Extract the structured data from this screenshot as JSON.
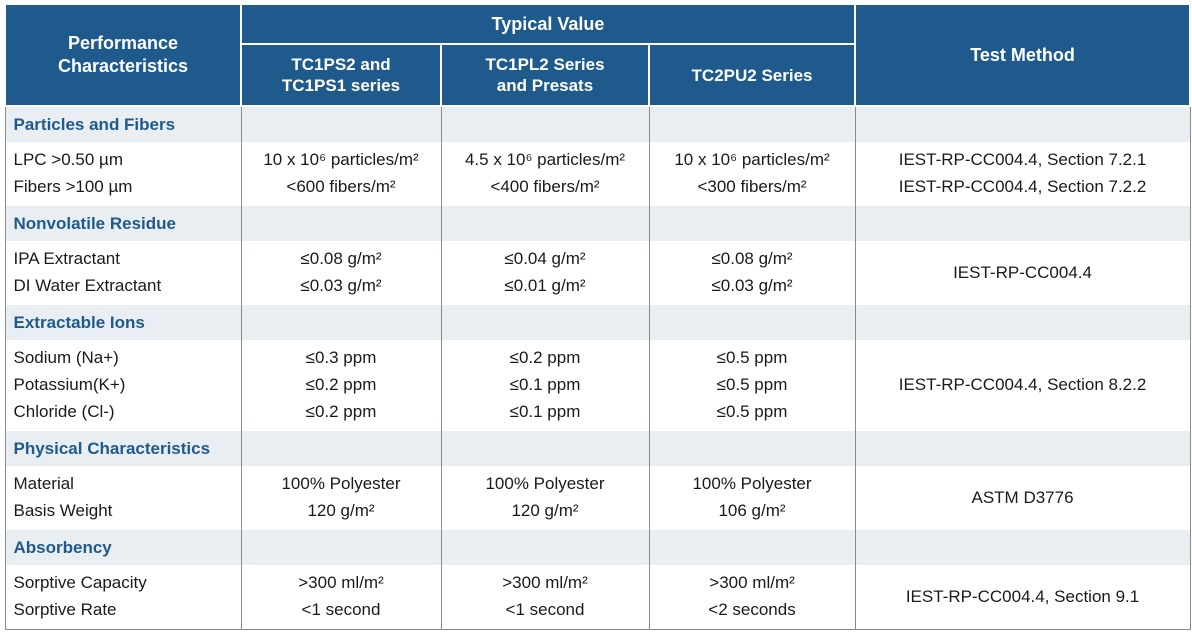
{
  "header": {
    "performance": "Performance Characteristics",
    "typical": "Typical Value",
    "test_method": "Test Method",
    "col1": "TC1PS2 and TC1PS1 series",
    "col2": "TC1PL2 Series and Presats",
    "col3": "TC2PU2 Series"
  },
  "sections": [
    {
      "title": "Particles and Fibers",
      "labels": [
        "LPC >0.50 µm",
        "Fibers >100 µm"
      ],
      "col1": [
        "10 x 10⁶ particles/m²",
        "<600 fibers/m²"
      ],
      "col2": [
        "4.5 x 10⁶ particles/m²",
        "<400 fibers/m²"
      ],
      "col3": [
        "10 x 10⁶ particles/m²",
        "<300 fibers/m²"
      ],
      "method": [
        "IEST-RP-CC004.4, Section 7.2.1",
        "IEST-RP-CC004.4, Section 7.2.2"
      ]
    },
    {
      "title": "Nonvolatile Residue",
      "labels": [
        "IPA Extractant",
        "DI Water Extractant"
      ],
      "col1": [
        "≤0.08 g/m²",
        "≤0.03 g/m²"
      ],
      "col2": [
        "≤0.04 g/m²",
        "≤0.01 g/m²"
      ],
      "col3": [
        "≤0.08 g/m²",
        "≤0.03 g/m²"
      ],
      "method": [
        "IEST-RP-CC004.4"
      ]
    },
    {
      "title": "Extractable Ions",
      "labels": [
        "Sodium (Na+)",
        "Potassium(K+)",
        "Chloride (Cl-)"
      ],
      "col1": [
        "≤0.3 ppm",
        "≤0.2 ppm",
        "≤0.2 ppm"
      ],
      "col2": [
        "≤0.2 ppm",
        "≤0.1 ppm",
        "≤0.1 ppm"
      ],
      "col3": [
        "≤0.5 ppm",
        "≤0.5 ppm",
        "≤0.5 ppm"
      ],
      "method": [
        "IEST-RP-CC004.4, Section 8.2.2"
      ]
    },
    {
      "title": "Physical Characteristics",
      "labels": [
        "Material",
        "Basis Weight"
      ],
      "col1": [
        "100% Polyester",
        "120 g/m²"
      ],
      "col2": [
        "100% Polyester",
        "120 g/m²"
      ],
      "col3": [
        "100% Polyester",
        "106 g/m²"
      ],
      "method": [
        "ASTM D3776"
      ]
    },
    {
      "title": "Absorbency",
      "labels": [
        "Sorptive Capacity",
        "Sorptive Rate"
      ],
      "col1": [
        ">300 ml/m²",
        "<1 second"
      ],
      "col2": [
        ">300 ml/m²",
        "<1 second"
      ],
      "col3": [
        ">300 ml/m²",
        "<2 seconds"
      ],
      "method": [
        "IEST-RP-CC004.4, Section 9.1"
      ]
    }
  ]
}
